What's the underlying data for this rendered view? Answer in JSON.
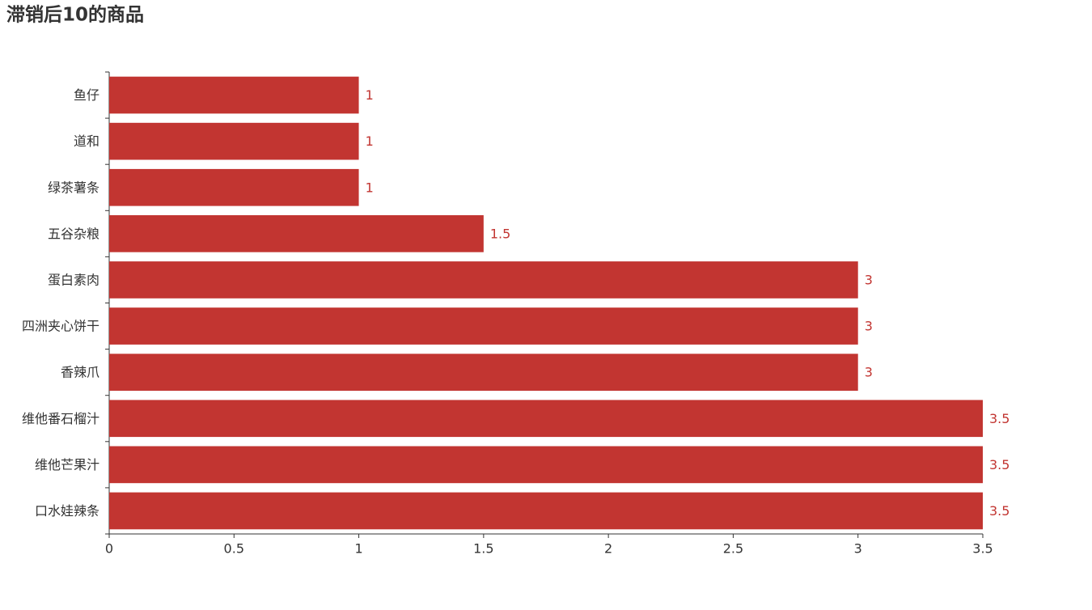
{
  "chart_data": {
    "type": "bar",
    "orientation": "horizontal",
    "title": "滞销后10的商品",
    "categories": [
      "鱼仔",
      "道和",
      "绿茶薯条",
      "五谷杂粮",
      "蛋白素肉",
      "四洲夹心饼干",
      "香辣爪",
      "维他番石榴汁",
      "维他芒果汁",
      "口水娃辣条"
    ],
    "values": [
      1,
      1,
      1,
      1.5,
      3,
      3,
      3,
      3.5,
      3.5,
      3.5
    ],
    "color": "#c23531",
    "xlim": [
      0,
      3.5
    ],
    "xticks": [
      0,
      0.5,
      1,
      1.5,
      2,
      2.5,
      3,
      3.5
    ],
    "grid": false
  }
}
